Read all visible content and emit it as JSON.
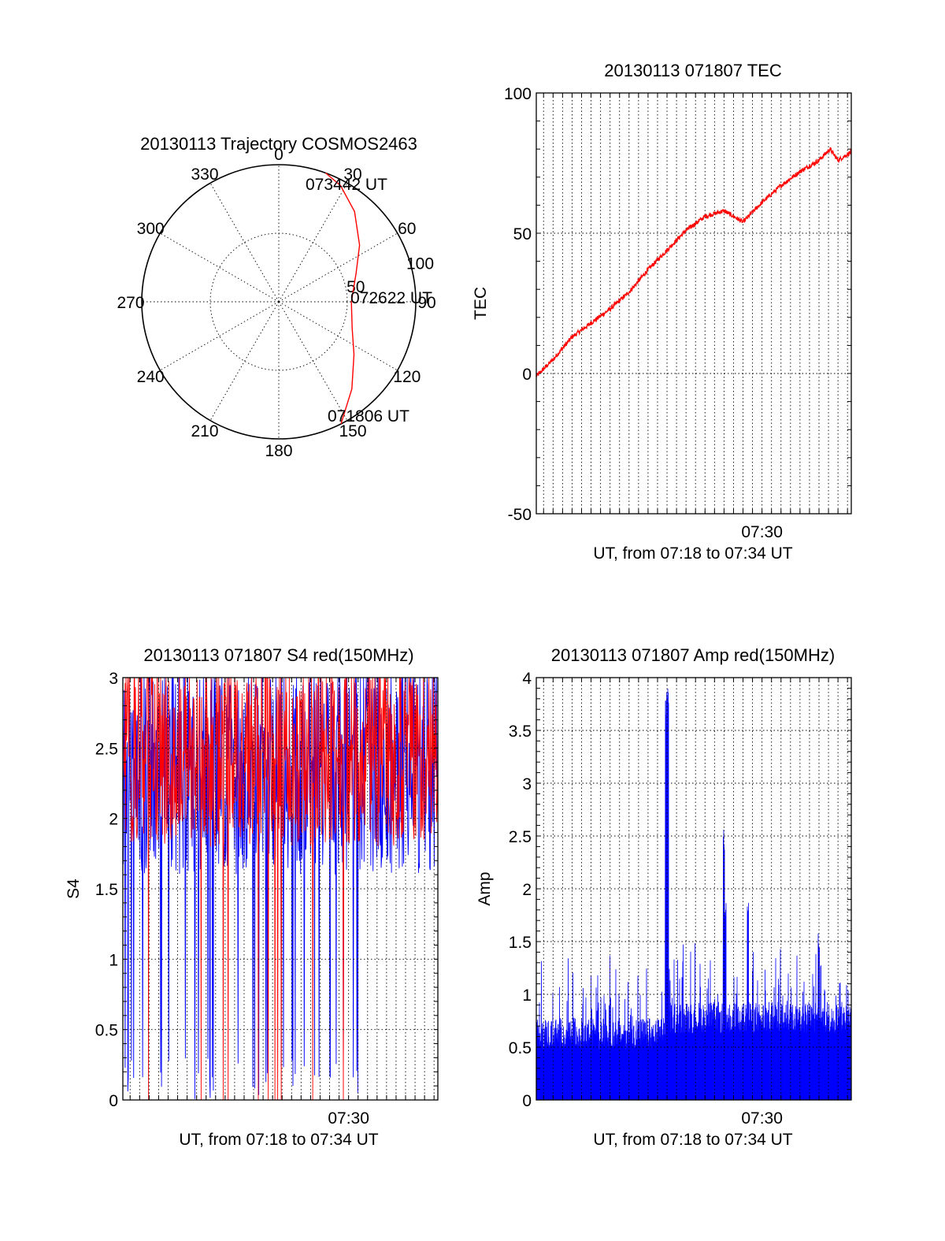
{
  "chart_data": [
    {
      "type": "polar",
      "title": "20130113 Trajectory COSMOS2463",
      "azimuth_labels": [
        "0",
        "30",
        "60",
        "90",
        "120",
        "150",
        "180",
        "210",
        "240",
        "270",
        "300",
        "330"
      ],
      "radial_labels": [
        "50",
        "100"
      ],
      "rmax": 100,
      "grid": true,
      "series": [
        {
          "color": "#ff0000",
          "azimuth_deg": [
            153,
            140,
            125,
            110,
            90,
            70,
            55,
            40,
            28,
            20
          ],
          "radius": [
            100,
            83,
            67,
            57,
            53,
            60,
            72,
            86,
            96,
            100
          ]
        }
      ],
      "annotations": [
        {
          "text": "073442 UT",
          "azimuth_deg": 20
        },
        {
          "text": "072622 UT",
          "azimuth_deg": 90
        },
        {
          "text": "071806 UT",
          "azimuth_deg": 153
        }
      ]
    },
    {
      "type": "line",
      "title": "20130113 071807 TEC",
      "xlabel": "UT, from 07:18 to 07:34 UT",
      "ylabel": "TEC",
      "xlim": [
        "07:18:07",
        "07:34:42"
      ],
      "ylim": [
        -50,
        100
      ],
      "yticks": [
        "100",
        "50",
        "0",
        "-50"
      ],
      "xticks": [
        {
          "label": "07:30",
          "time": "07:30:00"
        }
      ],
      "grid": true,
      "series": [
        {
          "color": "#ff0000",
          "x": [
            "07:18:07",
            "07:19:00",
            "07:20:00",
            "07:21:00",
            "07:22:00",
            "07:23:00",
            "07:24:00",
            "07:25:00",
            "07:26:00",
            "07:27:00",
            "07:28:00",
            "07:29:00",
            "07:30:00",
            "07:31:00",
            "07:32:00",
            "07:33:00",
            "07:33:35",
            "07:34:00",
            "07:34:42"
          ],
          "y": [
            -1,
            5,
            13,
            18,
            23,
            29,
            37,
            44,
            51,
            56,
            58,
            54,
            61,
            67,
            72,
            76,
            80,
            76,
            79
          ]
        }
      ]
    },
    {
      "type": "line",
      "title": "20130113 071807 S4 red(150MHz)",
      "xlabel": "UT, from 07:18 to 07:34 UT",
      "ylabel": "S4",
      "xlim": [
        "07:18:07",
        "07:34:42"
      ],
      "ylim": [
        0,
        3
      ],
      "yticks": [
        "3",
        "2.5",
        "2",
        "1.5",
        "1",
        "0.5",
        "0"
      ],
      "xticks": [
        {
          "label": "07:30",
          "time": "07:30:00"
        }
      ],
      "grid": true,
      "series": [
        {
          "color": "#ff0000",
          "description": "red(150MHz)",
          "level_range": [
            1.5,
            3.0
          ]
        },
        {
          "color": "#0000ff",
          "level_range": [
            1.4,
            3.0
          ]
        }
      ]
    },
    {
      "type": "bar",
      "title": "20130113 071807 Amp red(150MHz)",
      "xlabel": "UT, from 07:18 to 07:34 UT",
      "ylabel": "Amp",
      "xlim": [
        "07:18:07",
        "07:34:42"
      ],
      "ylim": [
        0,
        4
      ],
      "yticks": [
        "4",
        "3.5",
        "3",
        "2.5",
        "2",
        "1.5",
        "1",
        "0.5",
        "0"
      ],
      "xticks": [
        {
          "label": "07:30",
          "time": "07:30:00"
        }
      ],
      "grid": true,
      "series": [
        {
          "color": "#0000ff",
          "peaks": [
            {
              "time": "07:25:00",
              "value": 3.9
            },
            {
              "time": "07:28:00",
              "value": 2.6
            },
            {
              "time": "07:28:05",
              "value": 1.9
            },
            {
              "time": "07:29:15",
              "value": 1.9
            },
            {
              "time": "07:33:00",
              "value": 1.6
            }
          ],
          "baseline": 0.6
        }
      ]
    }
  ]
}
